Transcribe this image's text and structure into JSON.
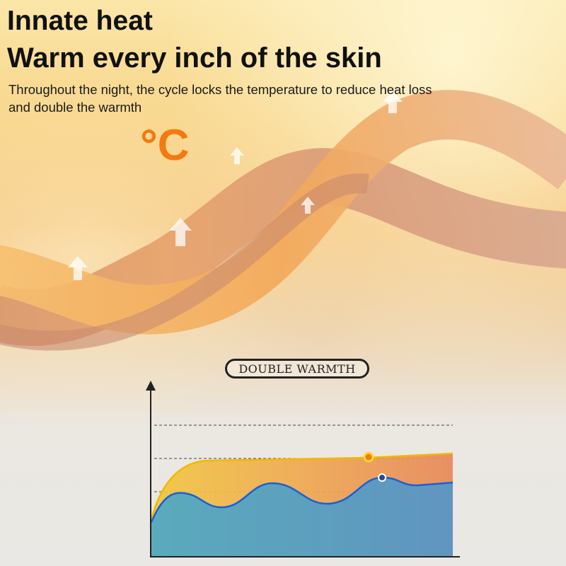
{
  "headline": {
    "line1": "Innate heat",
    "line2": "Warm every inch of the skin"
  },
  "subtitle": "Throughout the night, the cycle locks the temperature to reduce heat loss and double the warmth",
  "temperature_symbol": "°C",
  "chart": {
    "label": "DOUBLE WARMTH",
    "colors": {
      "orange": "#f0a030",
      "orange_line": "#f2b800",
      "blue": "#5aa0c0",
      "blue_line": "#1a5fd8",
      "accent": "#f27a10"
    }
  },
  "icons": [
    "up-arrow-icon",
    "up-arrow-icon",
    "up-arrow-icon",
    "up-arrow-icon",
    "up-arrow-icon"
  ]
}
